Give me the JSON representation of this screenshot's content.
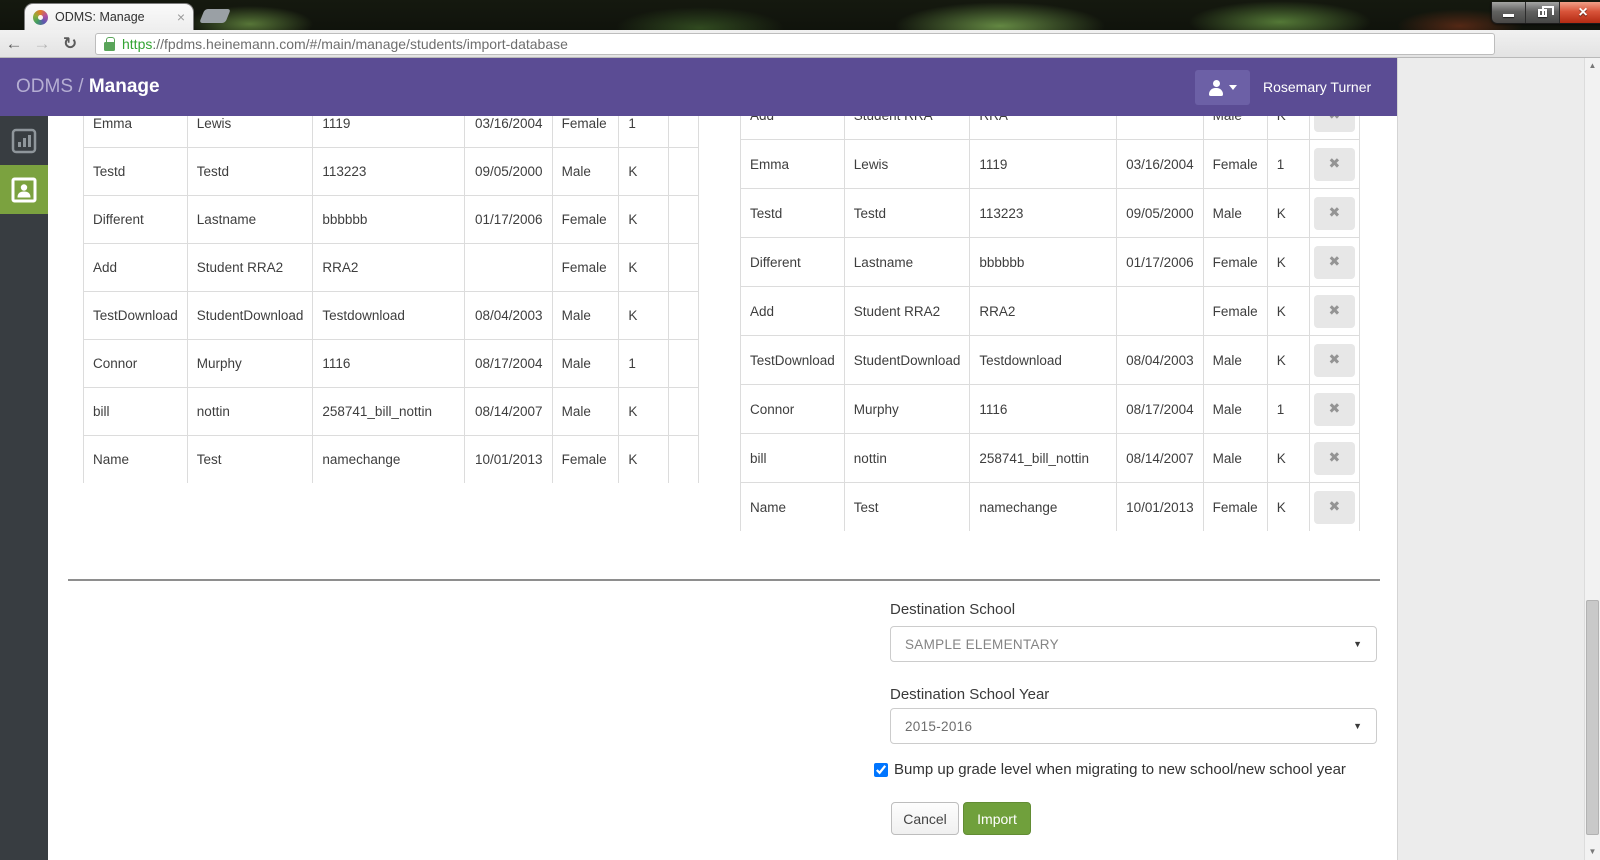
{
  "browser": {
    "tab_title": "ODMS: Manage",
    "url": {
      "scheme": "https",
      "rest": "://fpdms.heinemann.com/#/main/manage/students/import-database"
    }
  },
  "icons": {
    "back": "←",
    "forward": "→",
    "reload": "↻",
    "star": "☆",
    "tab_close": "×",
    "window_close": "×",
    "select_caret": "▼",
    "scroll_up": "▲",
    "scroll_down": "▼",
    "remove": "✖"
  },
  "app_header": {
    "brand": "ODMS / ",
    "page_title": "Manage",
    "user_name": "Rosemary Turner"
  },
  "import_preview": {
    "left_table": {
      "rows": [
        [
          "Emma",
          "Lewis",
          "1119",
          "03/16/2004",
          "Female",
          "1"
        ],
        [
          "Testd",
          "Testd",
          "113223",
          "09/05/2000",
          "Male",
          "K"
        ],
        [
          "Different",
          "Lastname",
          "bbbbbb",
          "01/17/2006",
          "Female",
          "K"
        ],
        [
          "Add",
          "Student RRA2",
          "RRA2",
          "",
          "Female",
          "K"
        ],
        [
          "TestDownload",
          "StudentDownload",
          "Testdownload",
          "08/04/2003",
          "Male",
          "K"
        ],
        [
          "Connor",
          "Murphy",
          "1116",
          "08/17/2004",
          "Male",
          "1"
        ],
        [
          "bill",
          "nottin",
          "258741_bill_nottin",
          "08/14/2007",
          "Male",
          "K"
        ],
        [
          "Name",
          "Test",
          "namechange",
          "10/01/2013",
          "Female",
          "K"
        ]
      ]
    },
    "right_table": {
      "rows": [
        [
          "Add",
          "Student RRA",
          "RRA",
          "",
          "Male",
          "K"
        ],
        [
          "Emma",
          "Lewis",
          "1119",
          "03/16/2004",
          "Female",
          "1"
        ],
        [
          "Testd",
          "Testd",
          "113223",
          "09/05/2000",
          "Male",
          "K"
        ],
        [
          "Different",
          "Lastname",
          "bbbbbb",
          "01/17/2006",
          "Female",
          "K"
        ],
        [
          "Add",
          "Student RRA2",
          "RRA2",
          "",
          "Female",
          "K"
        ],
        [
          "TestDownload",
          "StudentDownload",
          "Testdownload",
          "08/04/2003",
          "Male",
          "K"
        ],
        [
          "Connor",
          "Murphy",
          "1116",
          "08/17/2004",
          "Male",
          "1"
        ],
        [
          "bill",
          "nottin",
          "258741_bill_nottin",
          "08/14/2007",
          "Male",
          "K"
        ],
        [
          "Name",
          "Test",
          "namechange",
          "10/01/2013",
          "Female",
          "K"
        ]
      ]
    }
  },
  "form": {
    "school_label": "Destination School",
    "school_value": "SAMPLE ELEMENTARY",
    "year_label": "Destination School Year",
    "year_value": "2015-2016",
    "checkbox_label": "Bump up grade level when migrating to new school/new school year",
    "checkbox_checked": true,
    "cancel_label": "Cancel",
    "import_label": "Import"
  },
  "colors": {
    "header_purple": "#5b4c94",
    "user_button_purple": "#6c60a6",
    "sidebar_dark": "#383d41",
    "sidebar_active_green": "#7ba23f",
    "import_button_green": "#70a03c",
    "url_https_green": "#33a433",
    "table_border": "#dcdcdc"
  }
}
